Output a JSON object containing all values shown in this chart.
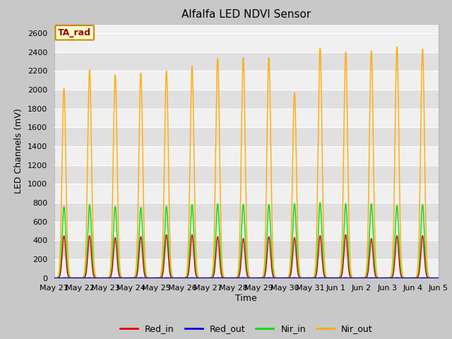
{
  "title": "Alfalfa LED NDVI Sensor",
  "ylabel": "LED Channels (mV)",
  "xlabel": "Time",
  "annotation": "TA_rad",
  "ylim": [
    0,
    2700
  ],
  "yticks": [
    0,
    200,
    400,
    600,
    800,
    1000,
    1200,
    1400,
    1600,
    1800,
    2000,
    2200,
    2400,
    2600
  ],
  "date_labels": [
    "May 21",
    "May 22",
    "May 23",
    "May 24",
    "May 25",
    "May 26",
    "May 27",
    "May 28",
    "May 29",
    "May 30",
    "May 31",
    "Jun 1",
    "Jun 2",
    "Jun 3",
    "Jun 4",
    "Jun 5"
  ],
  "num_cycles": 15,
  "colors": {
    "Red_in": "#dd0000",
    "Red_out": "#0000dd",
    "Nir_in": "#00dd00",
    "Nir_out": "#ffaa00"
  },
  "peaks": {
    "Red_in": [
      450,
      450,
      430,
      440,
      460,
      460,
      440,
      420,
      440,
      430,
      450,
      460,
      420,
      450,
      450
    ],
    "Red_out": [
      3,
      3,
      3,
      3,
      3,
      3,
      3,
      3,
      3,
      3,
      3,
      3,
      3,
      3,
      3
    ],
    "Nir_in": [
      760,
      780,
      760,
      750,
      760,
      780,
      790,
      780,
      780,
      790,
      800,
      790,
      790,
      770,
      780
    ],
    "Nir_out": [
      2010,
      2210,
      2160,
      2175,
      2200,
      2250,
      2330,
      2340,
      2340,
      1970,
      2440,
      2400,
      2410,
      2455,
      2430
    ]
  },
  "plot_bg_light": "#f0f0f0",
  "plot_bg_dark": "#e0e0e0",
  "grid_color": "#ffffff",
  "fig_bg": "#c8c8c8"
}
